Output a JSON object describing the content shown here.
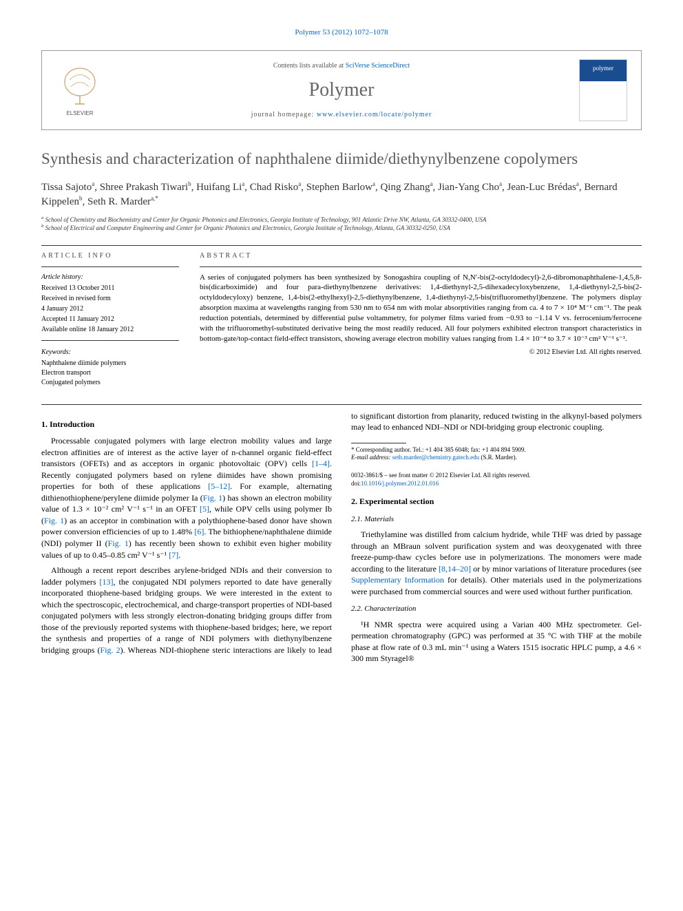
{
  "citation": "Polymer 53 (2012) 1072–1078",
  "header": {
    "contents_prefix": "Contents lists available at ",
    "contents_link": "SciVerse ScienceDirect",
    "journal": "Polymer",
    "homepage_prefix": "journal homepage: ",
    "homepage_url": "www.elsevier.com/locate/polymer",
    "cover_label": "polymer",
    "elsevier_label": "ELSEVIER"
  },
  "title": "Synthesis and characterization of naphthalene diimide/diethynylbenzene copolymers",
  "authors_html": "Tissa Sajoto<sup>a</sup>, Shree Prakash Tiwari<sup>b</sup>, Huifang Li<sup>a</sup>, Chad Risko<sup>a</sup>, Stephen Barlow<sup>a</sup>, Qing Zhang<sup>a</sup>, Jian-Yang Cho<sup>a</sup>, Jean-Luc Brédas<sup>a</sup>, Bernard Kippelen<sup>b</sup>, Seth R. Marder<sup>a,*</sup>",
  "affiliations": {
    "a": "School of Chemistry and Biochemistry and Center for Organic Photonics and Electronics, Georgia Institute of Technology, 901 Atlantic Drive NW, Atlanta, GA 30332-0400, USA",
    "b": "School of Electrical and Computer Engineering and Center for Organic Photonics and Electronics, Georgia Institute of Technology, Atlanta, GA 30332-0250, USA"
  },
  "article_info": {
    "heading": "ARTICLE INFO",
    "history_label": "Article history:",
    "history": [
      "Received 13 October 2011",
      "Received in revised form",
      "4 January 2012",
      "Accepted 11 January 2012",
      "Available online 18 January 2012"
    ],
    "keywords_label": "Keywords:",
    "keywords": [
      "Naphthalene diimide polymers",
      "Electron transport",
      "Conjugated polymers"
    ]
  },
  "abstract": {
    "heading": "ABSTRACT",
    "text": "A series of conjugated polymers has been synthesized by Sonogashira coupling of N,N′-bis(2-octyldodecyl)-2,6-dibromonaphthalene-1,4,5,8-bis(dicarboximide) and four para-diethynylbenzene derivatives: 1,4-diethynyl-2,5-dihexadecyloxybenzene, 1,4-diethynyl-2,5-bis(2-octyldodecyloxy) benzene, 1,4-bis(2-ethylhexyl)-2,5-diethynylbenzene, 1,4-diethynyl-2,5-bis(trifluoromethyl)benzene. The polymers display absorption maxima at wavelengths ranging from 530 nm to 654 nm with molar absorptivities ranging from ca. 4 to 7 × 10⁴ M⁻¹ cm⁻¹. The peak reduction potentials, determined by differential pulse voltammetry, for polymer films varied from −0.93 to −1.14 V vs. ferrocenium/ferrocene with the trifluoromethyl-substituted derivative being the most readily reduced. All four polymers exhibited electron transport characteristics in bottom-gate/top-contact field-effect transistors, showing average electron mobility values ranging from 1.4 × 10⁻⁴ to 3.7 × 10⁻³ cm² V⁻¹ s⁻¹.",
    "copyright": "© 2012 Elsevier Ltd. All rights reserved."
  },
  "body": {
    "s1_heading": "1. Introduction",
    "s1_p1": "Processable conjugated polymers with large electron mobility values and large electron affinities are of interest as the active layer of n-channel organic field-effect transistors (OFETs) and as acceptors in organic photovoltaic (OPV) cells [1–4]. Recently conjugated polymers based on rylene diimides have shown promising properties for both of these applications [5–12]. For example, alternating dithienothiophene/perylene diimide polymer Ia (Fig. 1) has shown an electron mobility value of 1.3 × 10⁻² cm² V⁻¹ s⁻¹ in an OFET [5], while OPV cells using polymer Ib (Fig. 1) as an acceptor in combination with a polythiophene-based donor have shown power conversion efficiencies of up to 1.48% [6]. The bithiophene/naphthalene diimide (NDI) polymer II (Fig. 1) has recently been shown to exhibit even higher mobility values of up to 0.45–0.85 cm² V⁻¹ s⁻¹ [7].",
    "s1_p2": "Although a recent report describes arylene-bridged NDIs and their conversion to ladder polymers [13], the conjugated NDI polymers reported to date have generally incorporated thiophene-based bridging groups. We were interested in the extent to which the spectroscopic, electrochemical, and charge-transport properties of NDI-based conjugated polymers with less strongly electron-donating bridging groups differ from those of the previously reported systems with thiophene-based bridges; here, we report the synthesis and properties of a range of NDI polymers with diethynylbenzene bridging groups (Fig. 2). Whereas NDI-thiophene steric interactions are likely to lead to significant distortion from planarity, reduced twisting in the alkynyl-based polymers may lead to enhanced NDI–NDI or NDI-bridging group electronic coupling.",
    "s2_heading": "2. Experimental section",
    "s21_heading": "2.1. Materials",
    "s21_p1": "Triethylamine was distilled from calcium hydride, while THF was dried by passage through an MBraun solvent purification system and was deoxygenated with three freeze-pump-thaw cycles before use in polymerizations. The monomers were made according to the literature [8,14–20] or by minor variations of literature procedures (see Supplementary Information for details). Other materials used in the polymerizations were purchased from commercial sources and were used without further purification.",
    "s22_heading": "2.2. Characterization",
    "s22_p1": "¹H NMR spectra were acquired using a Varian 400 MHz spectrometer. Gel-permeation chromatography (GPC) was performed at 35 °C with THF at the mobile phase at flow rate of 0.3 mL min⁻¹ using a Waters 1515 isocratic HPLC pump, a 4.6 × 300 mm Styragel®"
  },
  "footnote": {
    "corresponding": "* Corresponding author. Tel.: +1 404 385 6048; fax: +1 404 894 5909.",
    "email_label": "E-mail address: ",
    "email": "seth.marder@chemistry.gatech.edu",
    "email_suffix": " (S.R. Marder)."
  },
  "footer": {
    "issn": "0032-3861/$ – see front matter © 2012 Elsevier Ltd. All rights reserved.",
    "doi_label": "doi:",
    "doi": "10.1016/j.polymer.2012.01.016"
  },
  "colors": {
    "link": "#0066cc",
    "title_gray": "#5a5a5a",
    "text": "#000000",
    "border": "#999999"
  }
}
